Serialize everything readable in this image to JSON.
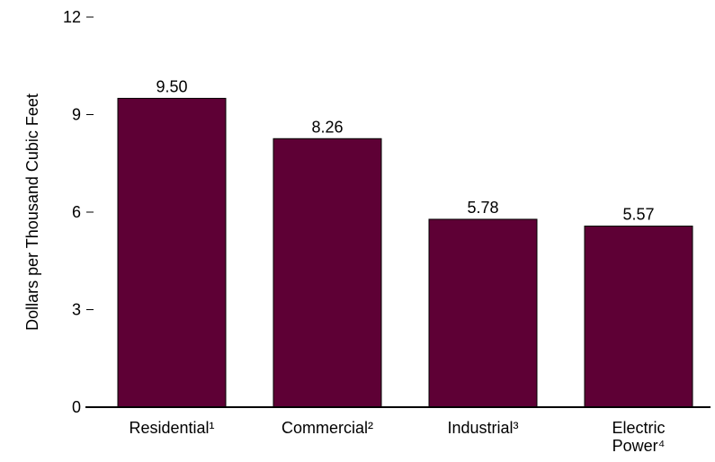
{
  "chart_data": {
    "type": "bar",
    "ylabel": "Dollars per Thousand Cubic Feet",
    "xlabel": "",
    "ylim": [
      0,
      12
    ],
    "yticks": [
      0,
      3,
      6,
      9,
      12
    ],
    "grid": false,
    "bar_color": "#5e0035",
    "categories": [
      {
        "label": "Residential¹",
        "lines": [
          "Residential¹"
        ]
      },
      {
        "label": "Commercial²",
        "lines": [
          "Commercial²"
        ]
      },
      {
        "label": "Industrial³",
        "lines": [
          "Industrial³"
        ]
      },
      {
        "label": "Electric Power⁴",
        "lines": [
          "Electric",
          "Power⁴"
        ]
      }
    ],
    "values": [
      9.5,
      8.26,
      5.78,
      5.57
    ],
    "value_labels": [
      "9.50",
      "8.26",
      "5.78",
      "5.57"
    ]
  }
}
